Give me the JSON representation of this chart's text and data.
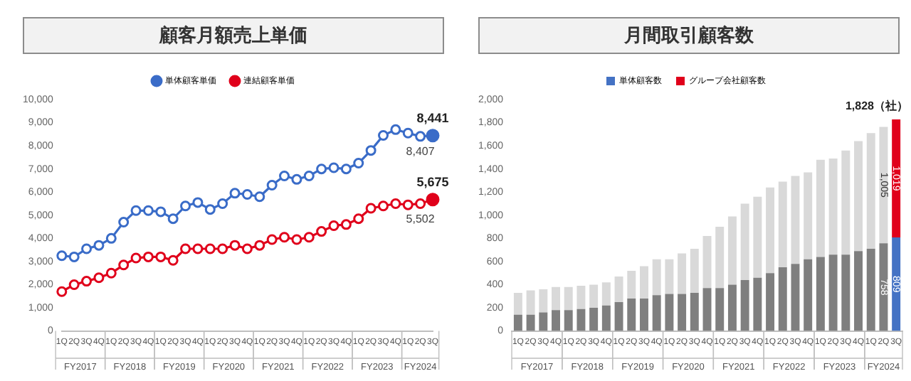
{
  "chart_data": [
    {
      "type": "line",
      "title": "顧客月額売上単価",
      "categories": [
        "1Q",
        "2Q",
        "3Q",
        "4Q",
        "1Q",
        "2Q",
        "3Q",
        "4Q",
        "1Q",
        "2Q",
        "3Q",
        "4Q",
        "1Q",
        "2Q",
        "3Q",
        "4Q",
        "1Q",
        "2Q",
        "3Q",
        "4Q",
        "1Q",
        "2Q",
        "3Q",
        "4Q",
        "1Q",
        "2Q",
        "3Q",
        "4Q",
        "1Q",
        "2Q",
        "3Q"
      ],
      "series": [
        {
          "name": "単体顧客単価",
          "color": "#3a6cc8",
          "values": [
            3250,
            3200,
            3550,
            3700,
            4000,
            4700,
            5200,
            5200,
            5150,
            4850,
            5400,
            5550,
            5250,
            5500,
            5950,
            5900,
            5800,
            6300,
            6700,
            6550,
            6700,
            7000,
            7050,
            7000,
            7250,
            7800,
            8450,
            8700,
            8550,
            8407,
            8441
          ],
          "value_labels": [
            null,
            null,
            null,
            null,
            null,
            null,
            null,
            null,
            null,
            null,
            null,
            null,
            null,
            null,
            null,
            null,
            null,
            null,
            null,
            null,
            null,
            null,
            null,
            null,
            null,
            null,
            null,
            null,
            null,
            "8,407",
            "8,441"
          ]
        },
        {
          "name": "連結顧客単価",
          "color": "#e0001b",
          "values": [
            1700,
            2000,
            2150,
            2300,
            2500,
            2850,
            3150,
            3200,
            3200,
            3050,
            3550,
            3550,
            3550,
            3550,
            3700,
            3550,
            3700,
            3950,
            4050,
            3950,
            4050,
            4300,
            4550,
            4600,
            4850,
            5300,
            5400,
            5500,
            5450,
            5502,
            5675
          ],
          "value_labels": [
            null,
            null,
            null,
            null,
            null,
            null,
            null,
            null,
            null,
            null,
            null,
            null,
            null,
            null,
            null,
            null,
            null,
            null,
            null,
            null,
            null,
            null,
            null,
            null,
            null,
            null,
            null,
            null,
            null,
            "5,502",
            "5,675"
          ]
        }
      ],
      "ylim": [
        0,
        10000
      ],
      "yticks": [
        0,
        {
          "value": 1000,
          "label": "1,000"
        },
        {
          "value": 2000,
          "label": "2,000"
        },
        {
          "value": 3000,
          "label": "3,000"
        },
        {
          "value": 4000,
          "label": "4,000"
        },
        {
          "value": 5000,
          "label": "5,000"
        },
        {
          "value": 6000,
          "label": "6,000"
        },
        {
          "value": 7000,
          "label": "7,000"
        },
        {
          "value": 8000,
          "label": "8,000"
        },
        {
          "value": 9000,
          "label": "9,000"
        },
        {
          "value": 10000,
          "label": "10,000"
        }
      ],
      "annotations": [
        "FY2017",
        "FY2018",
        "FY2019",
        "FY2020",
        "FY2021",
        "FY2022",
        "FY2023",
        "FY2024"
      ],
      "legend": "top",
      "marker": "circle",
      "grid": false
    },
    {
      "type": "bar",
      "title": "月間取引顧客数",
      "stacked": true,
      "categories": [
        "1Q",
        "2Q",
        "3Q",
        "4Q",
        "1Q",
        "2Q",
        "3Q",
        "4Q",
        "1Q",
        "2Q",
        "3Q",
        "4Q",
        "1Q",
        "2Q",
        "3Q",
        "4Q",
        "1Q",
        "2Q",
        "3Q",
        "4Q",
        "1Q",
        "2Q",
        "3Q",
        "4Q",
        "1Q",
        "2Q",
        "3Q",
        "4Q",
        "1Q",
        "2Q",
        "3Q"
      ],
      "series": [
        {
          "name": "単体顧客数",
          "color": "#4472c4",
          "colors": [
            "#7f7f7f",
            "#7f7f7f",
            "#7f7f7f",
            "#7f7f7f",
            "#7f7f7f",
            "#7f7f7f",
            "#7f7f7f",
            "#7f7f7f",
            "#7f7f7f",
            "#7f7f7f",
            "#7f7f7f",
            "#7f7f7f",
            "#7f7f7f",
            "#7f7f7f",
            "#7f7f7f",
            "#7f7f7f",
            "#7f7f7f",
            "#7f7f7f",
            "#7f7f7f",
            "#7f7f7f",
            "#7f7f7f",
            "#7f7f7f",
            "#7f7f7f",
            "#7f7f7f",
            "#7f7f7f",
            "#7f7f7f",
            "#7f7f7f",
            "#7f7f7f",
            "#7f7f7f",
            "#7f7f7f",
            "#4472c4"
          ],
          "values": [
            140,
            140,
            160,
            180,
            180,
            190,
            200,
            220,
            250,
            280,
            280,
            310,
            320,
            320,
            330,
            370,
            370,
            400,
            440,
            460,
            500,
            550,
            580,
            620,
            640,
            660,
            660,
            690,
            710,
            758,
            809
          ],
          "value_labels": [
            null,
            null,
            null,
            null,
            null,
            null,
            null,
            null,
            null,
            null,
            null,
            null,
            null,
            null,
            null,
            null,
            null,
            null,
            null,
            null,
            null,
            null,
            null,
            null,
            null,
            null,
            null,
            null,
            null,
            "758",
            "809"
          ]
        },
        {
          "name": "グループ会社顧客数",
          "color": "#e0001b",
          "colors": [
            "#d9d9d9",
            "#d9d9d9",
            "#d9d9d9",
            "#d9d9d9",
            "#d9d9d9",
            "#d9d9d9",
            "#d9d9d9",
            "#d9d9d9",
            "#d9d9d9",
            "#d9d9d9",
            "#d9d9d9",
            "#d9d9d9",
            "#d9d9d9",
            "#d9d9d9",
            "#d9d9d9",
            "#d9d9d9",
            "#d9d9d9",
            "#d9d9d9",
            "#d9d9d9",
            "#d9d9d9",
            "#d9d9d9",
            "#d9d9d9",
            "#d9d9d9",
            "#d9d9d9",
            "#d9d9d9",
            "#d9d9d9",
            "#d9d9d9",
            "#d9d9d9",
            "#d9d9d9",
            "#d9d9d9",
            "#e0001b"
          ],
          "values": [
            190,
            210,
            200,
            200,
            200,
            200,
            200,
            200,
            220,
            240,
            280,
            310,
            300,
            350,
            380,
            450,
            530,
            590,
            660,
            700,
            740,
            740,
            760,
            750,
            840,
            830,
            900,
            950,
            1000,
            1005,
            1019
          ],
          "value_labels": [
            null,
            null,
            null,
            null,
            null,
            null,
            null,
            null,
            null,
            null,
            null,
            null,
            null,
            null,
            null,
            null,
            null,
            null,
            null,
            null,
            null,
            null,
            null,
            null,
            null,
            null,
            null,
            null,
            null,
            "1,005",
            "1,019"
          ]
        }
      ],
      "totals": [
        null,
        null,
        null,
        null,
        null,
        null,
        null,
        null,
        null,
        null,
        null,
        null,
        null,
        null,
        null,
        null,
        null,
        null,
        null,
        null,
        null,
        null,
        null,
        null,
        null,
        null,
        null,
        null,
        null,
        null,
        "1,828（社）"
      ],
      "ylim": [
        0,
        2000
      ],
      "yticks": [
        0,
        200,
        400,
        600,
        800,
        {
          "value": 1000,
          "label": "1,000"
        },
        {
          "value": 1200,
          "label": "1,200"
        },
        {
          "value": 1400,
          "label": "1,400"
        },
        {
          "value": 1600,
          "label": "1,600"
        },
        {
          "value": 1800,
          "label": "1,800"
        },
        {
          "value": 2000,
          "label": "2,000"
        }
      ],
      "annotations": [
        "FY2017",
        "FY2018",
        "FY2019",
        "FY2020",
        "FY2021",
        "FY2022",
        "FY2023",
        "FY2024"
      ],
      "legend": "top",
      "grid": false
    }
  ]
}
